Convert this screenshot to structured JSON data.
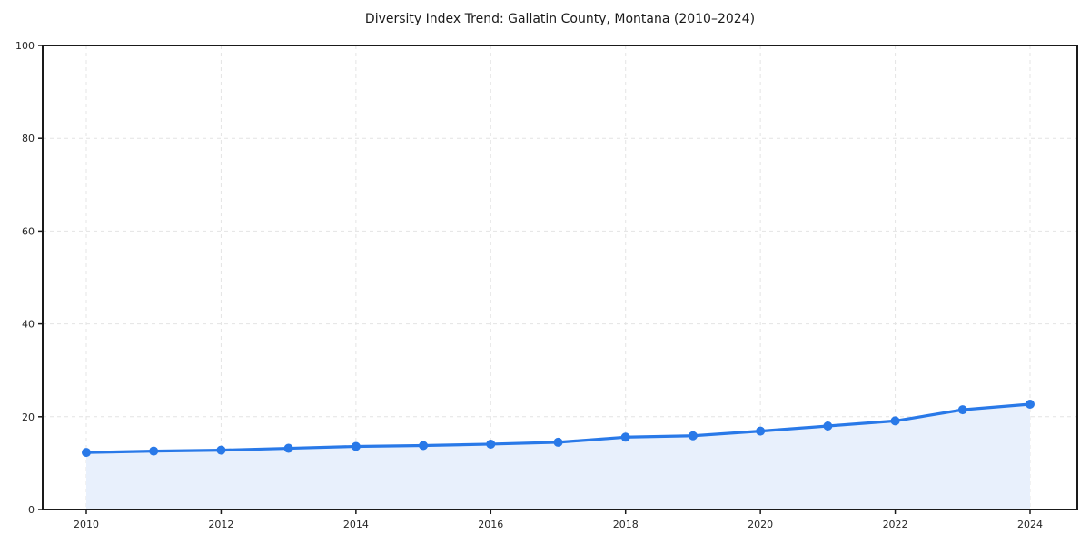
{
  "chart_data": {
    "type": "area",
    "title": "Diversity Index Trend: Gallatin County, Montana (2010–2024)",
    "xlabel": "",
    "ylabel": "",
    "x": [
      2010,
      2011,
      2012,
      2013,
      2014,
      2015,
      2016,
      2017,
      2018,
      2019,
      2020,
      2021,
      2022,
      2023,
      2024
    ],
    "values": [
      12.3,
      12.6,
      12.8,
      13.2,
      13.6,
      13.8,
      14.1,
      14.5,
      15.6,
      15.9,
      16.9,
      18.0,
      19.1,
      21.5,
      22.7
    ],
    "series_name": "Diversity Index",
    "xticks": [
      2010,
      2012,
      2014,
      2016,
      2018,
      2020,
      2022,
      2024
    ],
    "yticks": [
      0,
      20,
      40,
      60,
      80,
      100
    ],
    "ylim": [
      0,
      100
    ],
    "grid": true,
    "grid_style": "dashed",
    "legend": "none",
    "colors": {
      "line": "#2979e8",
      "marker": "#2979e8",
      "fill": "#e8f0fc",
      "grid": "#e4e4e4",
      "axis": "#1a1a1a",
      "tick_text": "#262626",
      "background": "#ffffff"
    }
  }
}
